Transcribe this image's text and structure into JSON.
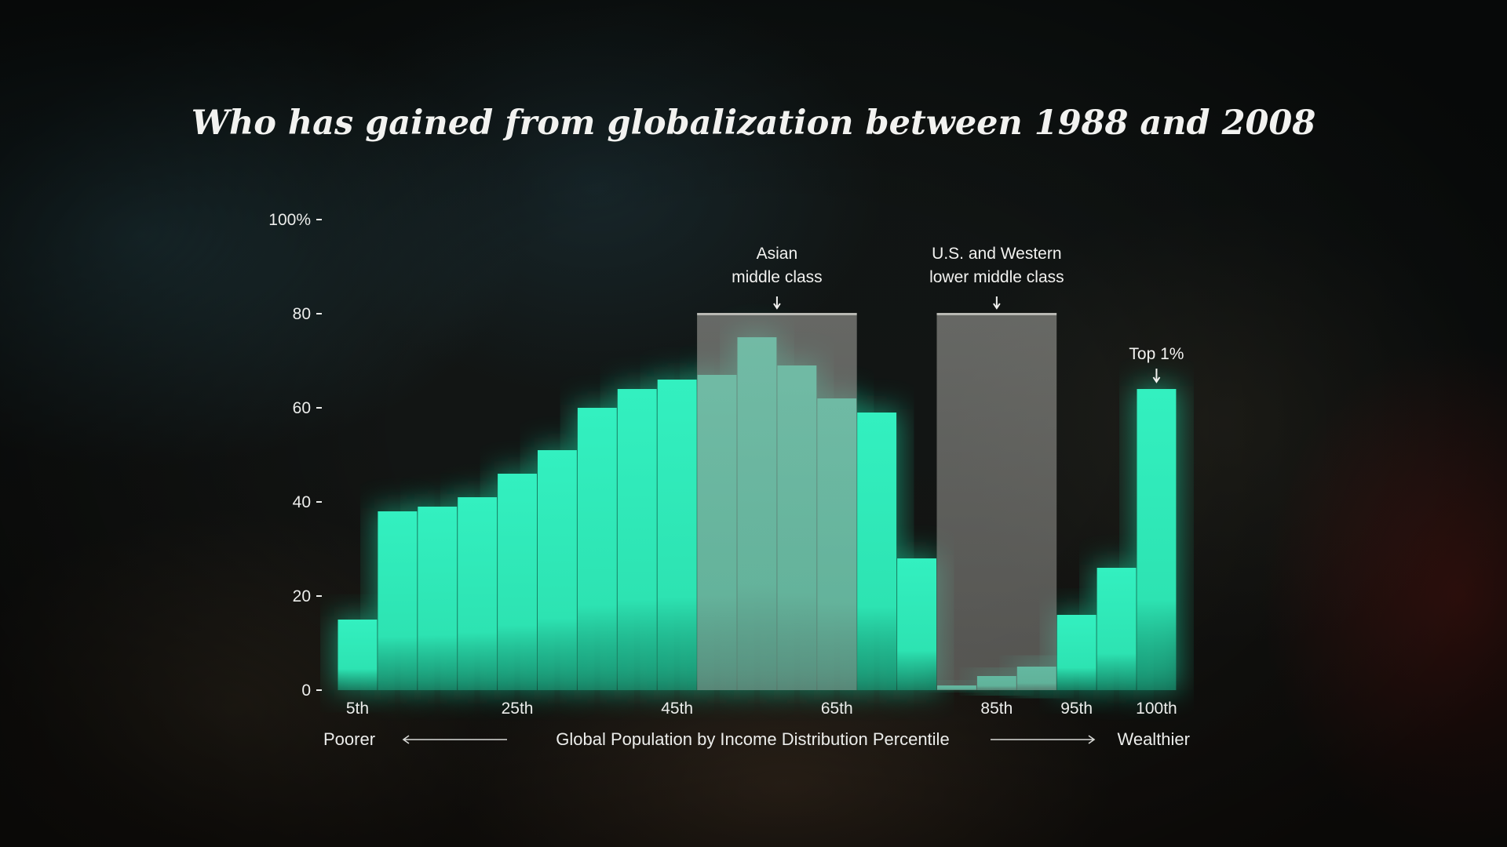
{
  "chart_data": {
    "type": "bar",
    "title": "Who has gained from globalization between 1988 and 2008",
    "xlabel": "Global Population by Income Distribution Percentile",
    "x_left_label": "Poorer",
    "x_right_label": "Wealthier",
    "ylabel": "",
    "ylim": [
      0,
      100
    ],
    "y_ticks": [
      "0",
      "20",
      "40",
      "60",
      "80",
      "100%"
    ],
    "y_tick_values": [
      0,
      20,
      40,
      60,
      80,
      100
    ],
    "x_tick_labels": [
      "5th",
      "25th",
      "45th",
      "65th",
      "85th",
      "95th",
      "100th"
    ],
    "x_tick_percentiles": [
      5,
      25,
      45,
      65,
      85,
      95,
      100
    ],
    "percentiles": [
      5,
      10,
      15,
      20,
      25,
      30,
      35,
      40,
      45,
      50,
      55,
      60,
      65,
      70,
      75,
      80,
      85,
      90,
      95,
      99,
      100
    ],
    "values": [
      15,
      38,
      39,
      41,
      46,
      51,
      60,
      64,
      66,
      67,
      75,
      69,
      62,
      59,
      28,
      1,
      3,
      5,
      16,
      26,
      64
    ],
    "annotations": [
      {
        "label_lines": [
          "Asian",
          "middle class"
        ],
        "from_percentile": 50,
        "to_percentile": 65
      },
      {
        "label_lines": [
          "U.S. and Western",
          "lower middle class"
        ],
        "from_percentile": 80,
        "to_percentile": 90
      },
      {
        "label_lines": [
          "Top 1%"
        ],
        "at_percentile": 100
      }
    ],
    "grid": false,
    "legend": "none",
    "colors": {
      "bar": "#2de3b2",
      "bar_glow": "#1fd9a6",
      "highlight_band": "#8a8a86",
      "text": "#ecedeb"
    }
  }
}
